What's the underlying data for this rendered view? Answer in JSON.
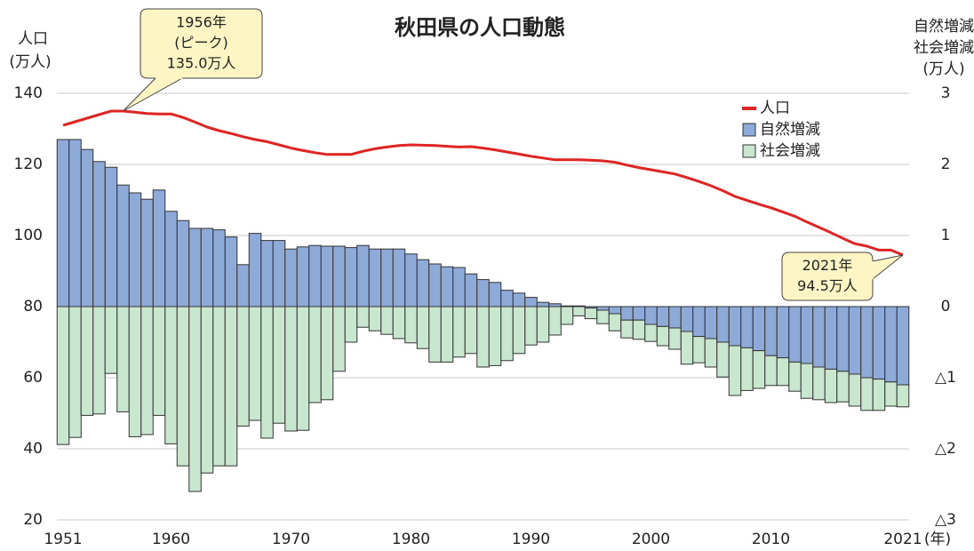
{
  "chart_data": {
    "type": "bar",
    "title": "秋田県の人口動態",
    "y_label": [
      "人口",
      "(万人)"
    ],
    "y2_label": [
      "自然増減",
      "社会増減",
      "(万人)"
    ],
    "x_unit": "(年)",
    "x": [
      1951,
      1952,
      1953,
      1954,
      1955,
      1956,
      1957,
      1958,
      1959,
      1960,
      1961,
      1962,
      1963,
      1964,
      1965,
      1966,
      1967,
      1968,
      1969,
      1970,
      1971,
      1972,
      1973,
      1974,
      1975,
      1976,
      1977,
      1978,
      1979,
      1980,
      1981,
      1982,
      1983,
      1984,
      1985,
      1986,
      1987,
      1988,
      1989,
      1990,
      1991,
      1992,
      1993,
      1994,
      1995,
      1996,
      1997,
      1998,
      1999,
      2000,
      2001,
      2002,
      2003,
      2004,
      2005,
      2006,
      2007,
      2008,
      2009,
      2010,
      2011,
      2012,
      2013,
      2014,
      2015,
      2016,
      2017,
      2018,
      2019,
      2020,
      2021
    ],
    "series": [
      {
        "name": "人口",
        "type": "line",
        "axis": "y",
        "color": "#e02424",
        "values": [
          131.0,
          132.0,
          133.0,
          134.0,
          135.0,
          135.0,
          134.7,
          134.3,
          134.2,
          134.2,
          133.2,
          131.9,
          130.5,
          129.5,
          128.7,
          127.8,
          127.0,
          126.4,
          125.5,
          124.6,
          123.9,
          123.3,
          122.8,
          122.8,
          122.8,
          123.7,
          124.4,
          124.9,
          125.3,
          125.5,
          125.4,
          125.3,
          125.1,
          124.9,
          125.0,
          124.6,
          124.1,
          123.5,
          122.9,
          122.3,
          121.8,
          121.3,
          121.3,
          121.3,
          121.2,
          121.0,
          120.6,
          119.8,
          119.1,
          118.5,
          117.9,
          117.3,
          116.3,
          115.2,
          114.0,
          112.6,
          111.0,
          109.9,
          108.8,
          107.8,
          106.6,
          105.4,
          103.8,
          102.3,
          100.8,
          99.2,
          97.7,
          97.0,
          95.9,
          95.9,
          94.5
        ]
      },
      {
        "name": "自然増減",
        "type": "bar",
        "axis": "y2",
        "color": "#8eaad8",
        "values": [
          2.35,
          2.35,
          2.21,
          2.04,
          1.96,
          1.71,
          1.6,
          1.51,
          1.64,
          1.34,
          1.21,
          1.1,
          1.1,
          1.08,
          0.98,
          0.59,
          1.03,
          0.93,
          0.93,
          0.81,
          0.84,
          0.86,
          0.85,
          0.85,
          0.83,
          0.86,
          0.81,
          0.81,
          0.81,
          0.74,
          0.66,
          0.6,
          0.56,
          0.55,
          0.46,
          0.38,
          0.34,
          0.23,
          0.19,
          0.13,
          0.06,
          0.04,
          0.01,
          0.01,
          -0.02,
          -0.05,
          -0.1,
          -0.19,
          -0.19,
          -0.25,
          -0.28,
          -0.3,
          -0.35,
          -0.42,
          -0.45,
          -0.5,
          -0.55,
          -0.58,
          -0.62,
          -0.69,
          -0.72,
          -0.78,
          -0.8,
          -0.85,
          -0.88,
          -0.91,
          -0.95,
          -1.0,
          -1.02,
          -1.06,
          -1.1
        ]
      },
      {
        "name": "社会増減",
        "type": "bar",
        "axis": "y2",
        "color": "#c9e6cf",
        "values": [
          -1.94,
          -1.84,
          -1.53,
          -1.51,
          -0.94,
          -1.48,
          -1.83,
          -1.8,
          -1.53,
          -1.93,
          -2.24,
          -2.6,
          -2.34,
          -2.24,
          -2.24,
          -1.68,
          -1.6,
          -1.85,
          -1.64,
          -1.75,
          -1.74,
          -1.35,
          -1.31,
          -0.91,
          -0.5,
          -0.29,
          -0.34,
          -0.39,
          -0.45,
          -0.51,
          -0.59,
          -0.78,
          -0.78,
          -0.71,
          -0.66,
          -0.85,
          -0.83,
          -0.76,
          -0.66,
          -0.54,
          -0.5,
          -0.4,
          -0.25,
          -0.13,
          -0.15,
          -0.19,
          -0.24,
          -0.25,
          -0.27,
          -0.24,
          -0.27,
          -0.3,
          -0.46,
          -0.37,
          -0.4,
          -0.49,
          -0.7,
          -0.6,
          -0.53,
          -0.42,
          -0.39,
          -0.41,
          -0.49,
          -0.46,
          -0.47,
          -0.43,
          -0.45,
          -0.46,
          -0.44,
          -0.34,
          -0.31
        ]
      }
    ],
    "xlim": [
      1950.5,
      2021.5
    ],
    "xticks": [
      1951,
      1960,
      1970,
      1980,
      1990,
      2000,
      2010,
      2021
    ],
    "ylim": [
      20,
      140
    ],
    "yticks": [
      20,
      40,
      60,
      80,
      100,
      120,
      140
    ],
    "y2lim": [
      -3,
      3
    ],
    "y2ticks": [
      {
        "value": -3,
        "label": "△3"
      },
      {
        "value": -2,
        "label": "△2"
      },
      {
        "value": -1,
        "label": "△1"
      },
      0,
      1,
      2,
      3
    ],
    "grid": true,
    "legend": "upper right",
    "annotations": [
      {
        "x": 1956,
        "text": [
          "1956年",
          "(ピーク)",
          "135.0万人"
        ]
      },
      {
        "x": 2021,
        "text": [
          "2021年",
          "94.5万人"
        ]
      }
    ]
  }
}
